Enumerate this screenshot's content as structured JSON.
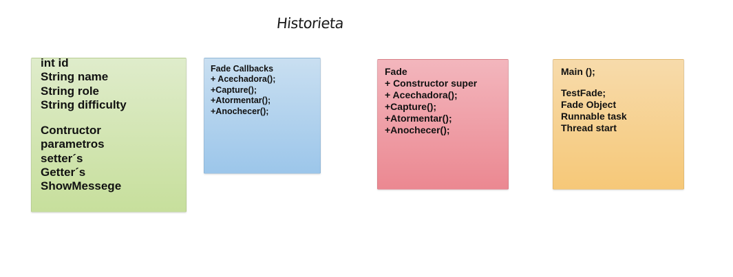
{
  "title": "Historieta",
  "notes": {
    "green": {
      "color": "#c7df9c",
      "lines": [
        "int id",
        "String name",
        "String role",
        "String difficulty",
        "",
        "Contructor",
        "parametros",
        "setter´s",
        "Getter´s",
        "ShowMessege"
      ]
    },
    "blue": {
      "color": "#9cc6ea",
      "lines": [
        "Fade Callbacks",
        "+ Acechadora();",
        "+Capture();",
        "+Atormentar();",
        "+Anochecer();"
      ]
    },
    "red": {
      "color": "#eb8891",
      "lines": [
        "Fade",
        "+ Constructor super",
        "+ Acechadora();",
        "+Capture();",
        "+Atormentar();",
        "+Anochecer();"
      ]
    },
    "orange": {
      "color": "#f6c878",
      "lines": [
        "Main ();",
        "",
        "TestFade;",
        "Fade Object",
        "Runnable task",
        "Thread start"
      ]
    }
  }
}
